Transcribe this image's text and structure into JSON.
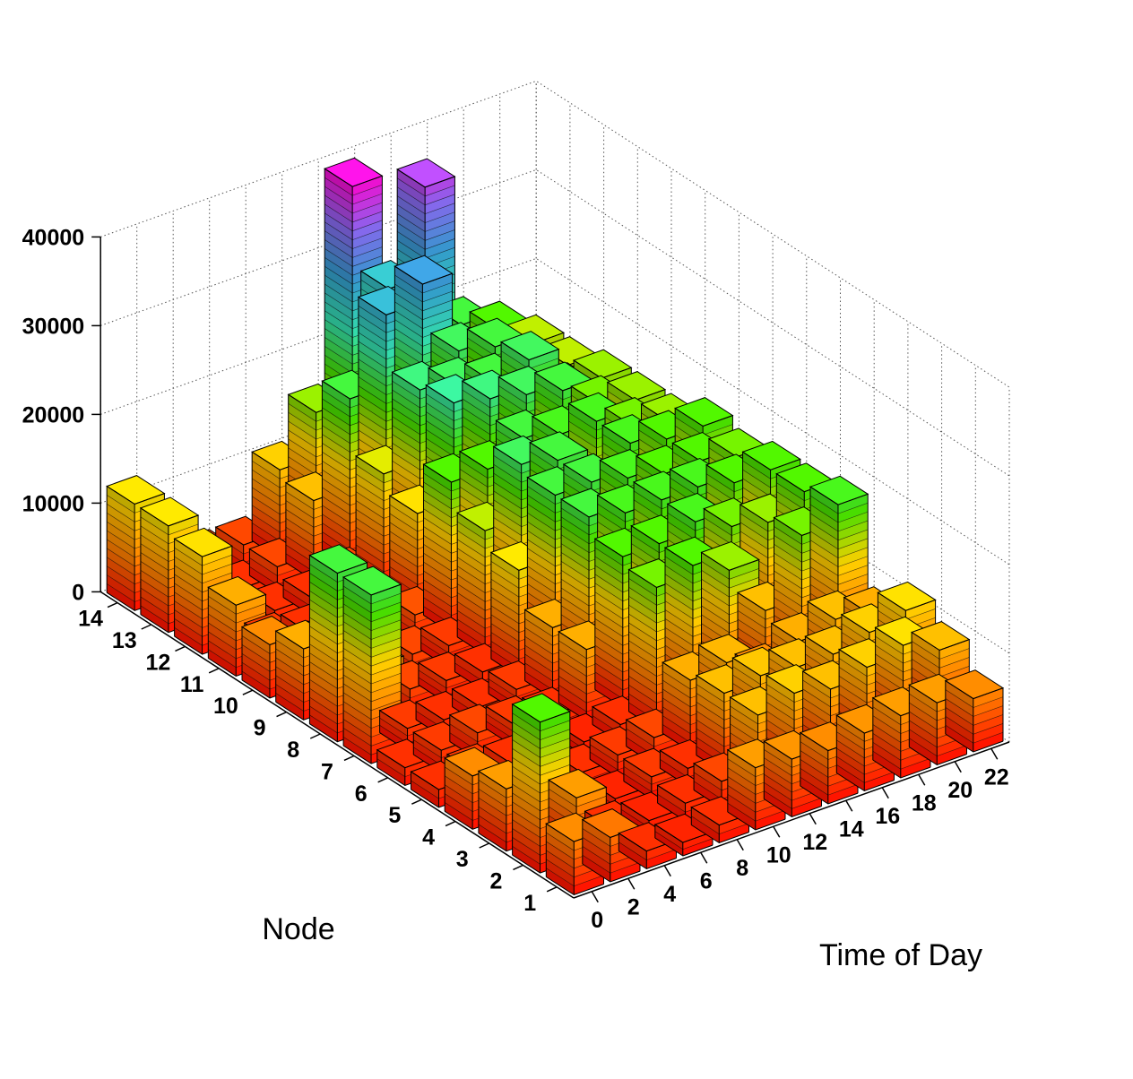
{
  "chart_data": {
    "type": "bar3d",
    "title": "",
    "xlabel": "Time of Day",
    "ylabel": "Node",
    "zlabel": "",
    "x_ticks": [
      "0",
      "2",
      "4",
      "6",
      "8",
      "10",
      "12",
      "14",
      "16",
      "18",
      "20",
      "22"
    ],
    "y_ticks": [
      "1",
      "2",
      "3",
      "4",
      "5",
      "6",
      "7",
      "8",
      "9",
      "10",
      "11",
      "12",
      "13",
      "14"
    ],
    "z_ticks": [
      "0",
      "10000",
      "20000",
      "30000",
      "40000"
    ],
    "zlim": [
      0,
      40000
    ],
    "grid": true,
    "colormap": [
      "#ff0000",
      "#ff7a00",
      "#ffd000",
      "#44dd00",
      "#33ddaa",
      "#3399cc",
      "#8866ee",
      "#ff00cc"
    ],
    "series": [
      {
        "node": 1,
        "values": [
          6000,
          5000,
          2000,
          1500,
          2000,
          7000,
          6500,
          6000,
          6500,
          7000,
          7000,
          6000
        ]
      },
      {
        "node": 2,
        "values": [
          17000,
          7000,
          2000,
          1500,
          2000,
          3000,
          9000,
          10000,
          9000,
          10000,
          11000,
          9000
        ]
      },
      {
        "node": 3,
        "values": [
          7000,
          6000,
          2000,
          1500,
          2500,
          2000,
          9000,
          9500,
          9000,
          9000,
          10000,
          11000
        ]
      },
      {
        "node": 4,
        "values": [
          6000,
          2000,
          2500,
          2000,
          2500,
          3000,
          8000,
          8500,
          6000,
          8000,
          9000,
          8000
        ]
      },
      {
        "node": 5,
        "values": [
          2000,
          2500,
          2000,
          2500,
          1500,
          2000,
          16000,
          17000,
          15000,
          9000,
          16000,
          18000
        ]
      },
      {
        "node": 6,
        "values": [
          2000,
          2500,
          3000,
          2500,
          2000,
          8000,
          17000,
          17000,
          18000,
          16000,
          15000,
          17000
        ]
      },
      {
        "node": 7,
        "values": [
          19000,
          2500,
          2000,
          2000,
          2500,
          8000,
          19000,
          18000,
          18000,
          18000,
          17000,
          17000
        ]
      },
      {
        "node": 8,
        "values": [
          19000,
          7000,
          3000,
          2500,
          2000,
          12000,
          19000,
          19000,
          18000,
          17000,
          17000,
          16000
        ]
      },
      {
        "node": 9,
        "values": [
          8000,
          9000,
          4000,
          3000,
          2500,
          14000,
          20000,
          19000,
          12000,
          18000,
          17000,
          17000
        ]
      },
      {
        "node": 10,
        "values": [
          6000,
          4000,
          3000,
          2000,
          3500,
          17000,
          17000,
          19000,
          18000,
          18000,
          16000,
          15000
        ]
      },
      {
        "node": 11,
        "values": [
          8000,
          2500,
          2000,
          2000,
          2500,
          11000,
          22000,
          21000,
          20000,
          19000,
          16000,
          15000
        ]
      },
      {
        "node": 12,
        "values": [
          11000,
          2500,
          2000,
          2000,
          3000,
          13000,
          21000,
          20000,
          19000,
          20000,
          15000,
          15000
        ]
      },
      {
        "node": 13,
        "values": [
          12000,
          2500,
          2000,
          3000,
          9000,
          19000,
          27000,
          29000,
          20000,
          19000,
          15000,
          14000
        ]
      },
      {
        "node": 14,
        "values": [
          12000,
          2000,
          3000,
          3000,
          10000,
          15000,
          39000,
          26000,
          36000,
          19000,
          17000,
          14000
        ]
      }
    ]
  }
}
